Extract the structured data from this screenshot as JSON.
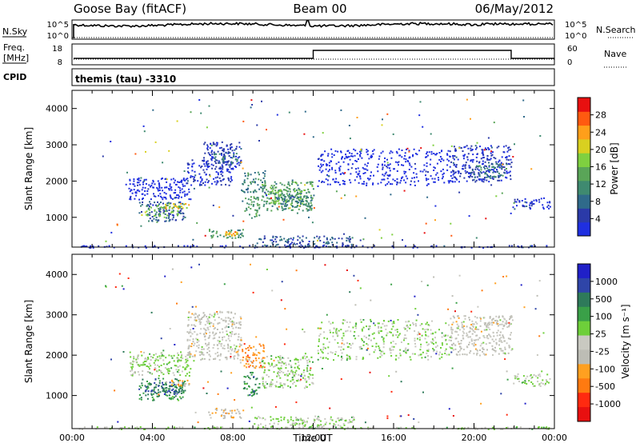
{
  "header": {
    "station": "Goose Bay (fitACF)",
    "beam": "Beam 00",
    "date": "06/May/2012"
  },
  "side_labels": {
    "nsky": "N.Sky",
    "nsearch": "N.Search",
    "freq_line1": "Freq.",
    "freq_line2": "[MHz]",
    "nave": "Nave",
    "cpid": "CPID"
  },
  "top_strips": {
    "noise_ticks_left": [
      "10^5",
      "10^0"
    ],
    "noise_ticks_right": [
      "10^5",
      "10^0"
    ],
    "freq_ticks_left": [
      "18",
      "8"
    ],
    "nave_ticks_right": [
      "60",
      "0"
    ],
    "cpid_text": "themis (tau) -3310",
    "freq_step": {
      "x_start": 12.0,
      "x_end": 21.85
    }
  },
  "colors": {
    "power_scale": [
      "#1f2fe0",
      "#2b3aa8",
      "#2f6a8a",
      "#3f8a70",
      "#5aa558",
      "#7fd040",
      "#d9d020",
      "#ff9f1a",
      "#ff5a10",
      "#e81010"
    ],
    "velocity_scale": [
      "#2020c8",
      "#2f45a8",
      "#2e7a5a",
      "#3aa048",
      "#6ecf3a",
      "#c9c9c1",
      "#bdbdb5",
      "#ffa020",
      "#ff7a10",
      "#ff2a10",
      "#e81010"
    ]
  },
  "chart_data": [
    {
      "type": "heatmap",
      "name": "power",
      "ylabel": "Slant Range [km]",
      "xlim": [
        0,
        24
      ],
      "ylim": [
        180,
        4500
      ],
      "yticks": [
        "1000",
        "2000",
        "3000",
        "4000"
      ],
      "colorbar_label": "Power [dB]",
      "colorbar_ticks": [
        "4",
        "8",
        "12",
        "16",
        "20",
        "24",
        "28"
      ],
      "regions": [
        {
          "x0": 2.8,
          "x1": 5.9,
          "y0": 1500,
          "y1": 2100,
          "c": 0
        },
        {
          "x0": 3.3,
          "x1": 5.6,
          "y0": 900,
          "y1": 1450,
          "c": 2
        },
        {
          "x0": 3.6,
          "x1": 5.4,
          "y0": 1050,
          "y1": 1350,
          "c": 5
        },
        {
          "x0": 4.6,
          "x1": 5.8,
          "y0": 1250,
          "y1": 1400,
          "c": 7
        },
        {
          "x0": 5.7,
          "x1": 8.0,
          "y0": 1900,
          "y1": 2600,
          "c": 1
        },
        {
          "x0": 6.5,
          "x1": 8.4,
          "y0": 2400,
          "y1": 3100,
          "c": 1
        },
        {
          "x0": 7.0,
          "x1": 8.2,
          "y0": 2500,
          "y1": 2800,
          "c": 3
        },
        {
          "x0": 6.8,
          "x1": 8.5,
          "y0": 450,
          "y1": 700,
          "c": 4
        },
        {
          "x0": 7.6,
          "x1": 8.2,
          "y0": 500,
          "y1": 620,
          "c": 7
        },
        {
          "x0": 8.4,
          "x1": 9.6,
          "y0": 1700,
          "y1": 2300,
          "c": 3
        },
        {
          "x0": 8.5,
          "x1": 9.3,
          "y0": 1000,
          "y1": 1600,
          "c": 4
        },
        {
          "x0": 9.4,
          "x1": 12.0,
          "y0": 1200,
          "y1": 2000,
          "c": 4
        },
        {
          "x0": 9.8,
          "x1": 11.4,
          "y0": 1400,
          "y1": 1800,
          "c": 5
        },
        {
          "x0": 10.0,
          "x1": 12.0,
          "y0": 1300,
          "y1": 1700,
          "c": 3
        },
        {
          "x0": 12.2,
          "x1": 18.8,
          "y0": 1900,
          "y1": 2900,
          "c": 0
        },
        {
          "x0": 18.8,
          "x1": 21.9,
          "y0": 2000,
          "y1": 3000,
          "c": 1
        },
        {
          "x0": 19.8,
          "x1": 21.6,
          "y0": 2100,
          "y1": 2500,
          "c": 3
        },
        {
          "x0": 21.9,
          "x1": 23.8,
          "y0": 1250,
          "y1": 1550,
          "c": 1
        },
        {
          "x0": 9.0,
          "x1": 14.0,
          "y0": 200,
          "y1": 500,
          "c": 2
        },
        {
          "x0": 0.2,
          "x1": 23.8,
          "y0": 180,
          "y1": 240,
          "c": 1
        }
      ]
    },
    {
      "type": "heatmap",
      "name": "velocity",
      "xlabel": "Time UT",
      "ylabel": "Slant Range [km]",
      "xlim": [
        0,
        24
      ],
      "ylim": [
        180,
        4500
      ],
      "xticks": [
        "00:00",
        "04:00",
        "08:00",
        "12:00",
        "16:00",
        "20:00",
        "00:00"
      ],
      "yticks": [
        "1000",
        "2000",
        "3000",
        "4000"
      ],
      "colorbar_label": "Velocity [m s⁻¹]",
      "colorbar_ticks": [
        "1000",
        "500",
        "100",
        "25",
        "-25",
        "-100",
        "-500",
        "-1000"
      ],
      "regions": [
        {
          "x0": 2.8,
          "x1": 5.9,
          "y0": 1500,
          "y1": 2100,
          "c": 5
        },
        {
          "x0": 3.3,
          "x1": 5.6,
          "y0": 900,
          "y1": 1450,
          "c": 3
        },
        {
          "x0": 3.6,
          "x1": 5.4,
          "y0": 1050,
          "y1": 1350,
          "c": 2
        },
        {
          "x0": 4.6,
          "x1": 5.8,
          "y0": 1250,
          "y1": 1400,
          "c": 7
        },
        {
          "x0": 5.7,
          "x1": 8.4,
          "y0": 1900,
          "y1": 3100,
          "c": 6
        },
        {
          "x0": 6.8,
          "x1": 8.5,
          "y0": 450,
          "y1": 700,
          "c": 7
        },
        {
          "x0": 8.4,
          "x1": 9.6,
          "y0": 1700,
          "y1": 2300,
          "c": 8
        },
        {
          "x0": 8.5,
          "x1": 9.3,
          "y0": 1000,
          "y1": 1600,
          "c": 3
        },
        {
          "x0": 9.4,
          "x1": 12.0,
          "y0": 1200,
          "y1": 2000,
          "c": 5
        },
        {
          "x0": 12.2,
          "x1": 18.8,
          "y0": 1900,
          "y1": 2900,
          "c": 5
        },
        {
          "x0": 18.8,
          "x1": 21.9,
          "y0": 2000,
          "y1": 3000,
          "c": 6
        },
        {
          "x0": 21.9,
          "x1": 23.8,
          "y0": 1250,
          "y1": 1550,
          "c": 5
        },
        {
          "x0": 9.0,
          "x1": 14.0,
          "y0": 200,
          "y1": 500,
          "c": 5
        },
        {
          "x0": 0.2,
          "x1": 23.8,
          "y0": 180,
          "y1": 240,
          "c": 5
        }
      ]
    }
  ]
}
